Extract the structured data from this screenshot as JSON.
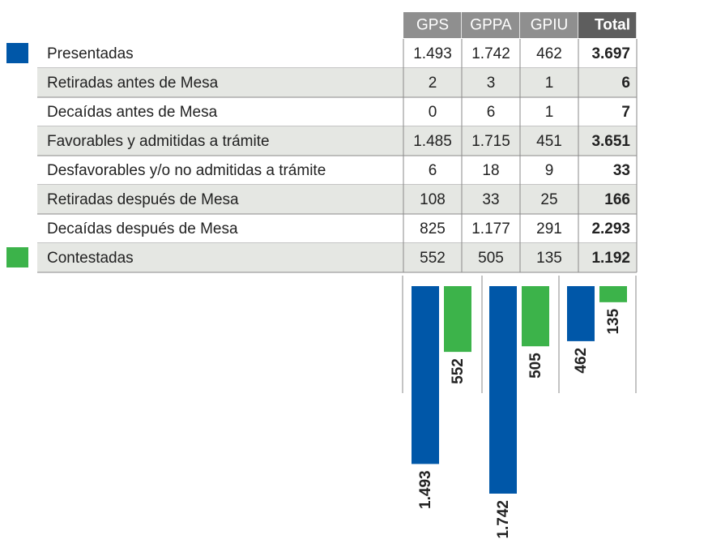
{
  "table": {
    "columns": [
      "GPS",
      "GPPA",
      "GPIU",
      "Total"
    ],
    "rows": [
      {
        "label": "Presentadas",
        "cells": [
          "1.493",
          "1.742",
          "462",
          "3.697"
        ]
      },
      {
        "label": "Retiradas antes de Mesa",
        "cells": [
          "2",
          "3",
          "1",
          "6"
        ]
      },
      {
        "label": "Decaídas antes de Mesa",
        "cells": [
          "0",
          "6",
          "1",
          "7"
        ]
      },
      {
        "label": "Favorables y admitidas a trámite",
        "cells": [
          "1.485",
          "1.715",
          "451",
          "3.651"
        ]
      },
      {
        "label": "Desfavorables y/o no admitidas a trámite",
        "cells": [
          "6",
          "18",
          "9",
          "33"
        ]
      },
      {
        "label": "Retiradas después de Mesa",
        "cells": [
          "108",
          "33",
          "25",
          "166"
        ]
      },
      {
        "label": "Decaídas después de Mesa",
        "cells": [
          "825",
          "1.177",
          "291",
          "2.293"
        ]
      },
      {
        "label": "Contestadas",
        "cells": [
          "552",
          "505",
          "135",
          "1.192"
        ]
      }
    ]
  },
  "chart_data": {
    "type": "bar",
    "categories": [
      "GPS",
      "GPPA",
      "GPIU"
    ],
    "series": [
      {
        "color": "#0057a8",
        "values": [
          1493,
          1742,
          462
        ],
        "value_labels": [
          "1.493",
          "1.742",
          "462"
        ]
      },
      {
        "color": "#3cb34a",
        "values": [
          552,
          505,
          135
        ],
        "value_labels": [
          "552",
          "505",
          "135"
        ]
      }
    ]
  }
}
